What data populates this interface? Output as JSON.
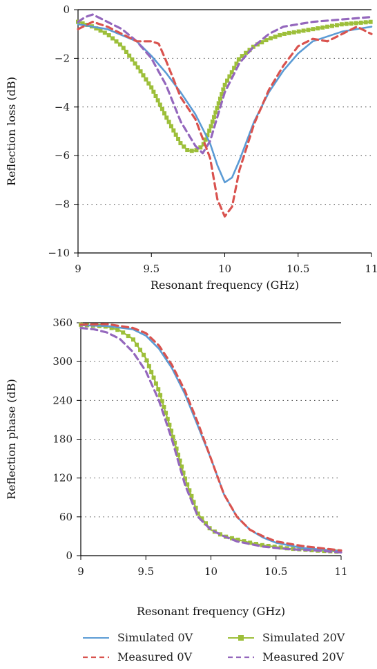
{
  "chart_data": [
    {
      "type": "line",
      "xlabel": "Resonant frequency (GHz)",
      "ylabel": "Reflection loss (dB)",
      "xlim": [
        9,
        11
      ],
      "ylim": [
        -10,
        0
      ],
      "x_ticks": [
        "9",
        "9.5",
        "10",
        "10.5",
        "11"
      ],
      "y_ticks": [
        "0",
        "−2",
        "−4",
        "−6",
        "−8",
        "−10"
      ],
      "grid": "horizontal-dotted",
      "series": [
        {
          "name": "Simulated 0V",
          "color": "#5b9bd5",
          "style": "solid",
          "x": [
            9.0,
            9.2,
            9.4,
            9.5,
            9.6,
            9.7,
            9.8,
            9.9,
            9.95,
            10.0,
            10.05,
            10.1,
            10.2,
            10.3,
            10.4,
            10.5,
            10.6,
            10.8,
            11.0
          ],
          "y": [
            -0.6,
            -0.8,
            -1.3,
            -1.9,
            -2.6,
            -3.4,
            -4.3,
            -5.5,
            -6.4,
            -7.1,
            -6.9,
            -6.2,
            -4.6,
            -3.4,
            -2.5,
            -1.8,
            -1.3,
            -0.9,
            -0.7
          ]
        },
        {
          "name": "Measured 0V",
          "color": "#d9534f",
          "style": "dashed",
          "x": [
            9.0,
            9.1,
            9.2,
            9.3,
            9.4,
            9.5,
            9.55,
            9.6,
            9.7,
            9.8,
            9.9,
            9.95,
            10.0,
            10.05,
            10.1,
            10.2,
            10.3,
            10.4,
            10.5,
            10.6,
            10.7,
            10.8,
            10.9,
            11.0
          ],
          "y": [
            -0.8,
            -0.5,
            -0.7,
            -1.0,
            -1.3,
            -1.3,
            -1.4,
            -2.1,
            -3.6,
            -4.5,
            -6.1,
            -7.8,
            -8.5,
            -8.1,
            -6.6,
            -4.7,
            -3.3,
            -2.3,
            -1.5,
            -1.2,
            -1.3,
            -1.0,
            -0.7,
            -1.0
          ]
        },
        {
          "name": "Simulated 20V",
          "color": "#9dbf3a",
          "style": "square-markers",
          "x": [
            9.0,
            9.1,
            9.2,
            9.3,
            9.4,
            9.5,
            9.6,
            9.7,
            9.75,
            9.8,
            9.85,
            9.9,
            9.95,
            10.0,
            10.1,
            10.2,
            10.3,
            10.4,
            10.5,
            10.6,
            10.8,
            11.0
          ],
          "y": [
            -0.5,
            -0.7,
            -1.0,
            -1.5,
            -2.3,
            -3.2,
            -4.4,
            -5.5,
            -5.8,
            -5.8,
            -5.6,
            -4.9,
            -4.0,
            -3.1,
            -2.0,
            -1.5,
            -1.2,
            -1.0,
            -0.9,
            -0.8,
            -0.6,
            -0.5
          ]
        },
        {
          "name": "Measured 20V",
          "color": "#9467bd",
          "style": "dashed",
          "x": [
            9.0,
            9.05,
            9.1,
            9.2,
            9.3,
            9.4,
            9.5,
            9.6,
            9.7,
            9.8,
            9.85,
            9.9,
            9.95,
            10.0,
            10.1,
            10.2,
            10.3,
            10.4,
            10.6,
            10.8,
            11.0
          ],
          "y": [
            -0.5,
            -0.3,
            -0.2,
            -0.5,
            -0.8,
            -1.3,
            -2.0,
            -3.1,
            -4.6,
            -5.6,
            -5.9,
            -5.4,
            -4.4,
            -3.4,
            -2.2,
            -1.5,
            -1.0,
            -0.7,
            -0.5,
            -0.4,
            -0.3
          ]
        }
      ]
    },
    {
      "type": "line",
      "xlabel": "Resonant frequency (GHz)",
      "ylabel": "Reflection phase (dB)",
      "xlim": [
        9,
        11
      ],
      "ylim": [
        0,
        360
      ],
      "x_ticks": [
        "9",
        "9.5",
        "10",
        "10.5",
        "11"
      ],
      "y_ticks": [
        "360",
        "300",
        "240",
        "180",
        "120",
        "60",
        "0"
      ],
      "grid": "horizontal-dotted",
      "series": [
        {
          "name": "Simulated 0V",
          "color": "#5b9bd5",
          "style": "solid",
          "x": [
            9.0,
            9.2,
            9.4,
            9.5,
            9.6,
            9.7,
            9.8,
            9.9,
            10.0,
            10.1,
            10.2,
            10.3,
            10.4,
            10.5,
            10.7,
            11.0
          ],
          "y": [
            356,
            355,
            350,
            340,
            320,
            290,
            250,
            200,
            150,
            95,
            60,
            40,
            28,
            20,
            12,
            7
          ]
        },
        {
          "name": "Measured 0V",
          "color": "#d9534f",
          "style": "dashed",
          "x": [
            9.0,
            9.2,
            9.4,
            9.5,
            9.6,
            9.7,
            9.8,
            9.9,
            10.0,
            10.1,
            10.2,
            10.3,
            10.4,
            10.5,
            10.7,
            11.0
          ],
          "y": [
            357,
            358,
            352,
            344,
            325,
            295,
            255,
            205,
            150,
            95,
            60,
            40,
            30,
            22,
            15,
            8
          ]
        },
        {
          "name": "Simulated 20V",
          "color": "#9dbf3a",
          "style": "square-markers",
          "x": [
            9.0,
            9.2,
            9.3,
            9.4,
            9.5,
            9.6,
            9.7,
            9.8,
            9.9,
            10.0,
            10.1,
            10.2,
            10.3,
            10.4,
            10.6,
            10.8,
            11.0
          ],
          "y": [
            357,
            354,
            348,
            335,
            305,
            255,
            190,
            120,
            65,
            40,
            30,
            25,
            20,
            16,
            11,
            8,
            6
          ]
        },
        {
          "name": "Measured 20V",
          "color": "#9467bd",
          "style": "dashed",
          "x": [
            9.0,
            9.1,
            9.2,
            9.3,
            9.4,
            9.5,
            9.6,
            9.7,
            9.8,
            9.9,
            10.0,
            10.1,
            10.2,
            10.3,
            10.4,
            10.6,
            10.8,
            11.0
          ],
          "y": [
            352,
            350,
            345,
            335,
            315,
            285,
            240,
            180,
            110,
            60,
            40,
            30,
            22,
            18,
            14,
            10,
            8,
            5
          ]
        }
      ]
    }
  ],
  "legend": {
    "placement": "bottom",
    "items": [
      {
        "label": "Simulated 0V",
        "color": "#5b9bd5",
        "style": "solid"
      },
      {
        "label": "Simulated 20V",
        "color": "#9dbf3a",
        "style": "square-markers"
      },
      {
        "label": "Measured 0V",
        "color": "#d9534f",
        "style": "dashed"
      },
      {
        "label": "Measured 20V",
        "color": "#9467bd",
        "style": "dashed"
      }
    ]
  }
}
